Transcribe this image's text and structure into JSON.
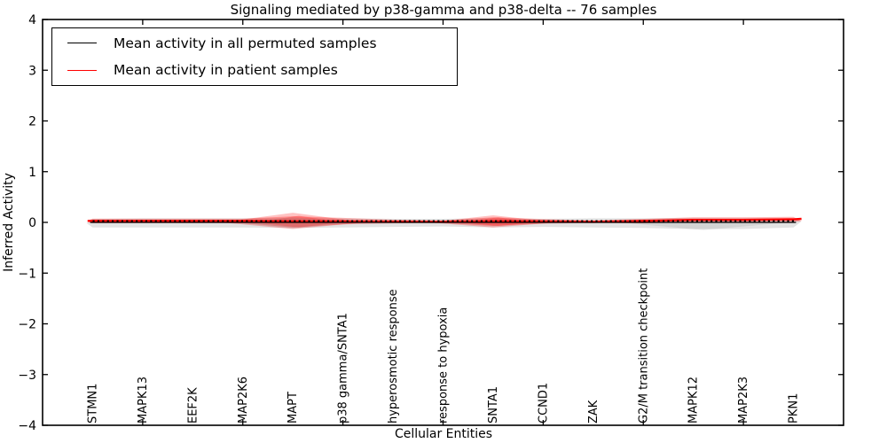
{
  "chart_data": {
    "type": "violin",
    "title": "Signaling mediated by p38-gamma and p38-delta -- 76 samples",
    "xlabel": "Cellular Entities",
    "ylabel": "Inferred Activity",
    "xlim": [
      0,
      16
    ],
    "ylim": [
      -4,
      4
    ],
    "xticks": [
      0,
      2,
      4,
      6,
      8,
      10,
      12,
      14,
      16
    ],
    "yticks": [
      -4,
      -3,
      -2,
      -1,
      0,
      1,
      2,
      3,
      4
    ],
    "ytick_labels": [
      "−4",
      "−3",
      "−2",
      "−1",
      "0",
      "1",
      "2",
      "3",
      "4"
    ],
    "grid": false,
    "categories": [
      "STMN1",
      "MAPK13",
      "EEF2K",
      "MAP2K6",
      "MAPT",
      "p38 gamma/SNTA1",
      "hyperosmotic response",
      "response to hypoxia",
      "SNTA1",
      "CCND1",
      "ZAK",
      "G2/M transition checkpoint",
      "MAPK12",
      "MAP2K3",
      "PKN1"
    ],
    "positions": [
      1,
      2,
      3,
      4,
      5,
      6,
      7,
      8,
      9,
      10,
      11,
      12,
      13,
      14,
      15
    ],
    "series": [
      {
        "name": "Mean activity in all permuted samples",
        "color": "#000000",
        "values": [
          0,
          0,
          0,
          0,
          0,
          0,
          0,
          0,
          0,
          0,
          0,
          0,
          0,
          0,
          0
        ]
      },
      {
        "name": "Mean activity in patient samples",
        "color": "#ff0000",
        "values": [
          0.03,
          0.03,
          0.03,
          0.03,
          0.02,
          0.02,
          0.015,
          0.01,
          0.02,
          0.02,
          0.01,
          0.03,
          0.05,
          0.05,
          0.06
        ]
      }
    ],
    "dashed_marker_line": {
      "color": "#000000",
      "y": 0.027
    },
    "permuted_violin": {
      "color": "#999999",
      "opacity": 0.28,
      "upper": [
        0.07,
        0.08,
        0.08,
        0.08,
        0.09,
        0.08,
        0.07,
        0.07,
        0.08,
        0.07,
        0.08,
        0.08,
        0.09,
        0.09,
        0.08
      ],
      "lower": [
        -0.1,
        -0.1,
        -0.1,
        -0.1,
        -0.11,
        -0.1,
        -0.09,
        -0.08,
        -0.1,
        -0.09,
        -0.1,
        -0.11,
        -0.13,
        -0.13,
        -0.1
      ]
    },
    "patient_violin": {
      "color": "#ff0000",
      "opacity": 0.27,
      "upper": [
        0.075,
        0.075,
        0.075,
        0.075,
        0.12,
        0.09,
        0.055,
        0.04,
        0.1,
        0.065,
        0.04,
        0.07,
        0.1,
        0.1,
        0.11
      ],
      "lower": [
        -0.015,
        -0.015,
        -0.015,
        -0.015,
        -0.1,
        -0.04,
        -0.02,
        -0.01,
        -0.07,
        -0.025,
        -0.01,
        -0.02,
        0.0,
        0.0,
        0.01
      ]
    },
    "bulges": [
      {
        "series": "patient",
        "center": 5,
        "halfspan": 1.45,
        "top": 0.19,
        "bottom": -0.13
      },
      {
        "series": "patient",
        "center": 5.12,
        "halfspan": 0.85,
        "top": 0.13,
        "bottom": -0.1
      },
      {
        "series": "patient",
        "center": 9,
        "halfspan": 1.3,
        "top": 0.14,
        "bottom": -0.1
      },
      {
        "series": "patient",
        "center": 9.1,
        "halfspan": 0.75,
        "top": 0.1,
        "bottom": -0.07
      },
      {
        "series": "permuted",
        "center": 5.0,
        "halfspan": 1.2,
        "top": 0.1,
        "bottom": -0.12
      },
      {
        "series": "permuted",
        "center": 13.2,
        "halfspan": 1.7,
        "top": 0.05,
        "bottom": -0.15
      }
    ],
    "legend": {
      "position": "upper left",
      "entries": [
        {
          "label": "Mean activity in all permuted samples",
          "color": "#000000"
        },
        {
          "label": "Mean activity in patient samples",
          "color": "#ff0000"
        }
      ]
    }
  }
}
